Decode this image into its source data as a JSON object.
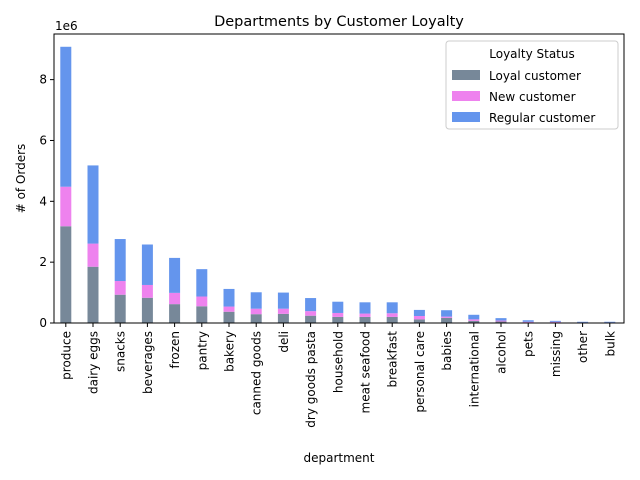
{
  "chart_data": {
    "type": "bar",
    "stacked": true,
    "title": "Departments by Customer Loyalty",
    "xlabel": "department",
    "ylabel": "# of Orders",
    "y_scale_label": "1e6",
    "ylim": [
      0,
      9.5
    ],
    "yticks": [
      "0",
      "2",
      "4",
      "6",
      "8"
    ],
    "ytick_values": [
      0,
      2,
      4,
      6,
      8
    ],
    "grid": false,
    "legend": {
      "title": "Loyalty Status",
      "placement": "top-right"
    },
    "categories": [
      "produce",
      "dairy eggs",
      "snacks",
      "beverages",
      "frozen",
      "pantry",
      "bakery",
      "canned goods",
      "deli",
      "dry goods pasta",
      "household",
      "meat seafood",
      "breakfast",
      "personal care",
      "babies",
      "international",
      "alcohol",
      "pets",
      "missing",
      "other",
      "bulk"
    ],
    "series": [
      {
        "name": "Loyal customer",
        "color": "#778899",
        "values": [
          3.18,
          1.85,
          0.93,
          0.83,
          0.62,
          0.55,
          0.37,
          0.29,
          0.3,
          0.24,
          0.2,
          0.2,
          0.2,
          0.12,
          0.17,
          0.07,
          0.05,
          0.02,
          0.02,
          0.01,
          0.01
        ]
      },
      {
        "name": "New customer",
        "color": "#EE82EE",
        "values": [
          1.3,
          0.76,
          0.45,
          0.42,
          0.37,
          0.32,
          0.17,
          0.18,
          0.17,
          0.15,
          0.13,
          0.11,
          0.12,
          0.11,
          0.04,
          0.05,
          0.03,
          0.02,
          0.02,
          0.01,
          0.01
        ]
      },
      {
        "name": "Regular customer",
        "color": "#6495ED",
        "values": [
          4.6,
          2.57,
          1.38,
          1.33,
          1.15,
          0.9,
          0.58,
          0.54,
          0.53,
          0.43,
          0.37,
          0.37,
          0.36,
          0.2,
          0.21,
          0.15,
          0.08,
          0.05,
          0.03,
          0.02,
          0.02
        ]
      }
    ]
  }
}
